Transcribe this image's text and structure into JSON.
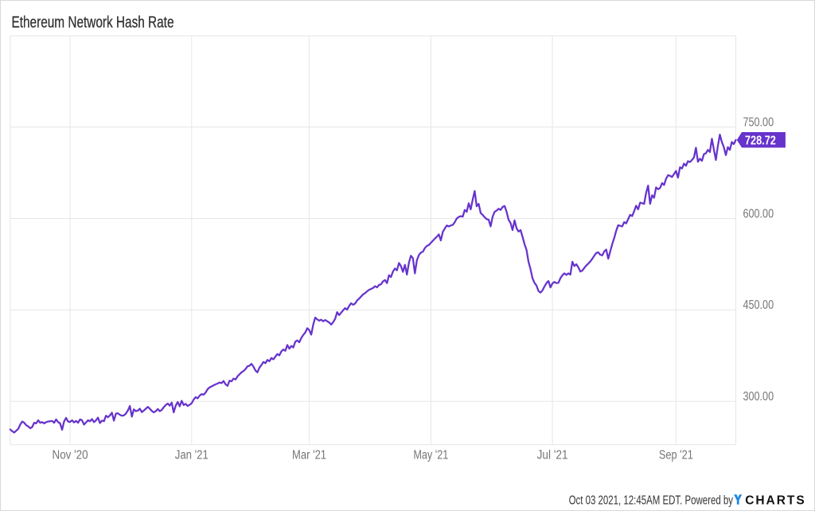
{
  "header": {
    "title": "Ethereum Network Hash Rate"
  },
  "footer": {
    "timestamp_text": "Oct 03 2021, 12:45AM EDT. Powered by",
    "logo_y": "Y",
    "logo_charts": "CHARTS"
  },
  "colors": {
    "background": "#FFFFFF",
    "page_border": "#D8D8D8",
    "title": "#333333",
    "grid": "#E6E6E6",
    "plot_border": "#E6E6E6",
    "axis_label": "#757575",
    "line": "#6633CC",
    "badge_bg": "#6633CC",
    "badge_text": "#FFFFFF",
    "footer_text": "#333333",
    "logo_y_blue": "#1E88E5",
    "logo_charts_black": "#111111"
  },
  "chart_data": {
    "type": "line",
    "title": "Ethereum Network Hash Rate",
    "x_start_date": "2020-10-02",
    "x_end_date": "2021-10-01",
    "frequency": "daily",
    "values": [
      254,
      251,
      249,
      252,
      255,
      262,
      267,
      265,
      261,
      259,
      256,
      258,
      265,
      264,
      269,
      265,
      266,
      264,
      266,
      267,
      267.5,
      268,
      265,
      270.5,
      266,
      264,
      253.5,
      267,
      273,
      267,
      266.3,
      269,
      265.5,
      268,
      265,
      270.5,
      269,
      262,
      265.5,
      269,
      267.5,
      271,
      266,
      269,
      273.4,
      264.5,
      268.5,
      267.5,
      276.5,
      274,
      277,
      281.5,
      268.5,
      280,
      280.5,
      278,
      276.5,
      277,
      280,
      285,
      292.5,
      275,
      287,
      284,
      285,
      288,
      282.5,
      285,
      288,
      291,
      288,
      284.5,
      282,
      284,
      287.5,
      284,
      286,
      290.5,
      294,
      296.5,
      293,
      298,
      282,
      293,
      299,
      292,
      301,
      294,
      296,
      292.5,
      294.5,
      297,
      303,
      307,
      305,
      309.4,
      312,
      311,
      314.5,
      320,
      323,
      324.5,
      326.3,
      328,
      329.3,
      331,
      330,
      333.5,
      328,
      325.5,
      334,
      332.9,
      337.5,
      336,
      341,
      344.4,
      347.6,
      349.8,
      353,
      357.4,
      358.5,
      361.6,
      357,
      350.8,
      347.7,
      355.3,
      359.6,
      364.7,
      362.6,
      368,
      365.8,
      371.2,
      369,
      373.4,
      377.7,
      375.5,
      382,
      385.2,
      383,
      392.5,
      386.5,
      391,
      388.5,
      398,
      400,
      397,
      404,
      409,
      413,
      420,
      417,
      409.5,
      426,
      437.5,
      434.5,
      432.5,
      434,
      431.5,
      433.5,
      431.5,
      429.5,
      426,
      430,
      435.5,
      446.5,
      441.5,
      445.5,
      449.5,
      453,
      450.5,
      456.5,
      461,
      458.5,
      460.5,
      465.5,
      468.5,
      472,
      475.5,
      477.5,
      480.5,
      483,
      484.5,
      486,
      489,
      487,
      491,
      492,
      497,
      499,
      494,
      507,
      504,
      513,
      518,
      515,
      527,
      522,
      512.5,
      524,
      508,
      527.5,
      538.9,
      535,
      510,
      531.5,
      540,
      544,
      545.5,
      551.5,
      555,
      556.5,
      560,
      563.5,
      567,
      570,
      574,
      564,
      578,
      583.5,
      588.5,
      587,
      588.5,
      589.5,
      594,
      600,
      602.5,
      603.8,
      603,
      614,
      611,
      625,
      615,
      631,
      645,
      620,
      624,
      609,
      606,
      602,
      599,
      598,
      587,
      603,
      611,
      613,
      616,
      614,
      619,
      620.5,
      611,
      598,
      592.5,
      581,
      597,
      584,
      578.5,
      581,
      570,
      558,
      548.5,
      529,
      517,
      502,
      494.5,
      490,
      481,
      478.5,
      482,
      488.5,
      494,
      497.5,
      487,
      493.5,
      496,
      494,
      494.5,
      502,
      507,
      510,
      507.5,
      510,
      508,
      529,
      522,
      525,
      520,
      513,
      514.5,
      519,
      523,
      526,
      529.5,
      534,
      539,
      543.5,
      544.5,
      540.5,
      539.5,
      546,
      549,
      534,
      546,
      558,
      568,
      580,
      589,
      588,
      587,
      594,
      592,
      599,
      606,
      604,
      612,
      621,
      615,
      626,
      625,
      624,
      642,
      654,
      624,
      638,
      634,
      651,
      648,
      650,
      658,
      655,
      665,
      671,
      670,
      668,
      673,
      678,
      667,
      684,
      682,
      690,
      686.5,
      694,
      692.5,
      696,
      700,
      716,
      693,
      698,
      694.5,
      705.5,
      707,
      712.5,
      709,
      730.7,
      713,
      696,
      719,
      737.5,
      725.4,
      717,
      704,
      717,
      712.5,
      725.4,
      722,
      728.72
    ],
    "last_value_label": "728.72",
    "ylim": [
      229.0,
      899.6
    ],
    "y_ticks": [
      {
        "value": 300,
        "label": "300.00"
      },
      {
        "value": 450,
        "label": "450.00"
      },
      {
        "value": 600,
        "label": "600.00"
      },
      {
        "value": 750,
        "label": "750.00"
      }
    ],
    "x_ticks": [
      {
        "date": "2020-11-01",
        "label": "Nov '20"
      },
      {
        "date": "2021-01-01",
        "label": "Jan '21"
      },
      {
        "date": "2021-03-01",
        "label": "Mar '21"
      },
      {
        "date": "2021-05-01",
        "label": "May '21"
      },
      {
        "date": "2021-07-01",
        "label": "Jul '21"
      },
      {
        "date": "2021-09-01",
        "label": "Sep '21"
      }
    ],
    "grid": true,
    "legend": "none",
    "line_color": "#6633CC"
  }
}
